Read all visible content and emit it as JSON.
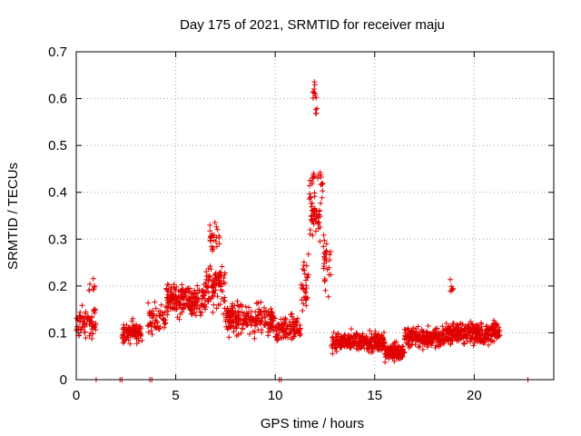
{
  "chart_data": {
    "type": "scatter",
    "title": "Day 175 of 2021, SRMTID for receiver maju",
    "xlabel": "GPS time / hours",
    "ylabel": "SRMTID / TECUs",
    "xlim": [
      0,
      24
    ],
    "ylim": [
      0,
      0.7
    ],
    "xticks": [
      0,
      5,
      10,
      15,
      20
    ],
    "yticks": [
      0,
      0.1,
      0.2,
      0.3,
      0.4,
      0.5,
      0.6,
      0.7
    ],
    "xtick_labels": [
      "0",
      "5",
      "10",
      "15",
      "20"
    ],
    "ytick_labels": [
      "0",
      "0.1",
      "0.2",
      "0.3",
      "0.4",
      "0.5",
      "0.6",
      "0.7"
    ],
    "grid": true,
    "marker": "+",
    "color": "#e00000",
    "series": [
      {
        "name": "SRMTID",
        "segments": [
          {
            "x": [
              0.0,
              1.0
            ],
            "base": 0.12,
            "spread": 0.05,
            "n": 70
          },
          {
            "x": [
              0.6,
              1.0
            ],
            "base": 0.2,
            "spread": 0.03,
            "n": 8
          },
          {
            "x": [
              2.3,
              3.3
            ],
            "base": 0.1,
            "spread": 0.035,
            "n": 90
          },
          {
            "x": [
              3.6,
              4.5
            ],
            "base": 0.13,
            "spread": 0.04,
            "n": 60
          },
          {
            "x": [
              4.5,
              6.5
            ],
            "base": 0.17,
            "spread": 0.05,
            "n": 200
          },
          {
            "x": [
              6.5,
              7.5
            ],
            "base": 0.2,
            "spread": 0.07,
            "n": 90
          },
          {
            "x": [
              6.7,
              7.2
            ],
            "base": 0.3,
            "spread": 0.05,
            "n": 25
          },
          {
            "x": [
              7.5,
              10.0
            ],
            "base": 0.13,
            "spread": 0.05,
            "n": 220
          },
          {
            "x": [
              10.0,
              11.3
            ],
            "base": 0.11,
            "spread": 0.04,
            "n": 100
          },
          {
            "x": [
              11.3,
              11.7
            ],
            "base": 0.2,
            "spread": 0.08,
            "n": 30
          },
          {
            "x": [
              11.7,
              12.4
            ],
            "base": 0.38,
            "spread": 0.12,
            "n": 70
          },
          {
            "x": [
              11.9,
              12.1
            ],
            "base": 0.6,
            "spread": 0.07,
            "n": 15
          },
          {
            "x": [
              12.4,
              12.8
            ],
            "base": 0.25,
            "spread": 0.08,
            "n": 30
          },
          {
            "x": [
              12.8,
              14.0
            ],
            "base": 0.08,
            "spread": 0.03,
            "n": 120
          },
          {
            "x": [
              14.0,
              15.5
            ],
            "base": 0.08,
            "spread": 0.03,
            "n": 150
          },
          {
            "x": [
              15.5,
              16.5
            ],
            "base": 0.06,
            "spread": 0.025,
            "n": 120
          },
          {
            "x": [
              16.5,
              18.5
            ],
            "base": 0.09,
            "spread": 0.03,
            "n": 200
          },
          {
            "x": [
              18.5,
              19.5
            ],
            "base": 0.1,
            "spread": 0.04,
            "n": 100
          },
          {
            "x": [
              19.5,
              21.3
            ],
            "base": 0.1,
            "spread": 0.035,
            "n": 180
          },
          {
            "x": [
              18.8,
              19.2
            ],
            "base": 0.2,
            "spread": 0.02,
            "n": 6
          }
        ],
        "zero_points": [
          1.0,
          2.2,
          2.3,
          3.7,
          3.8,
          10.2,
          10.3,
          22.7
        ]
      }
    ]
  }
}
